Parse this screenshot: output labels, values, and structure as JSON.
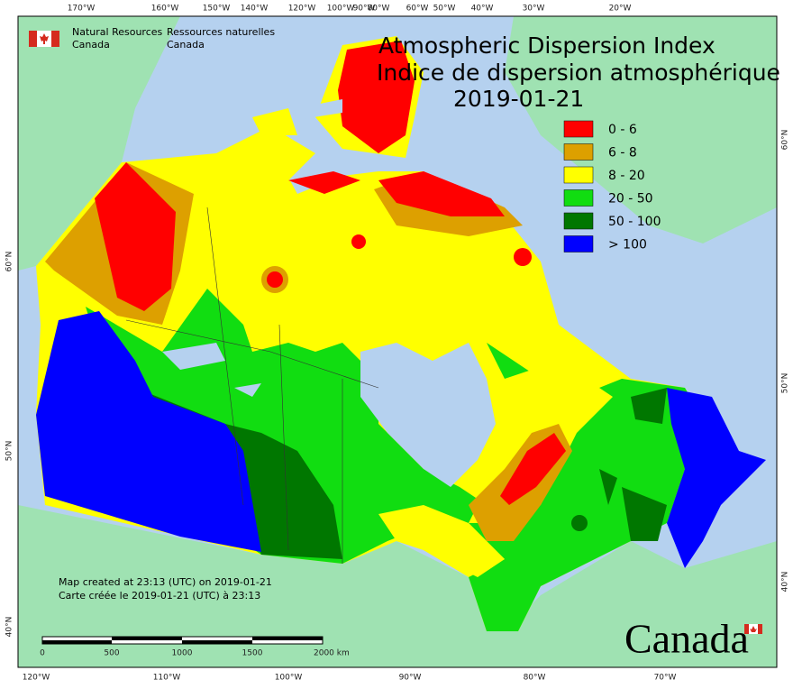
{
  "header": {
    "agency_en": [
      "Natural Resources",
      "Canada"
    ],
    "agency_fr": [
      "Ressources naturelles",
      "Canada"
    ]
  },
  "title": {
    "lines": [
      "Atmospheric Dispersion Index",
      "Indice de dispersion atmosphérique"
    ],
    "date": "2019-01-21"
  },
  "legend": {
    "items": [
      {
        "label": "0 - 6",
        "color": "#ff0000"
      },
      {
        "label": "6 - 8",
        "color": "#dda000"
      },
      {
        "label": "8 - 20",
        "color": "#ffff00"
      },
      {
        "label": "20 - 50",
        "color": "#11dd11"
      },
      {
        "label": "50 - 100",
        "color": "#007700"
      },
      {
        "label": "> 100",
        "color": "#0000ff"
      }
    ]
  },
  "axes": {
    "top": [
      "170°W",
      "160°W",
      "150°W",
      "140°W",
      "120°W",
      "100°W",
      "90°W",
      "80°W",
      "60°W",
      "50°W",
      "40°W",
      "30°W",
      "20°W"
    ],
    "bottom": [
      "120°W",
      "110°W",
      "100°W",
      "90°W",
      "80°W",
      "70°W"
    ],
    "left": [
      "60°N",
      "50°N",
      "40°N"
    ],
    "right": [
      "60°N",
      "50°N",
      "40°N"
    ]
  },
  "scale_bar": {
    "labels": [
      "0",
      "500",
      "1000",
      "1500",
      "2000 km"
    ]
  },
  "notes": [
    "Map created at 23:13 (UTC) on 2019-01-21",
    "Carte créée le 2019-01-21 (UTC) à 23:13"
  ],
  "wordmark": "Canada"
}
